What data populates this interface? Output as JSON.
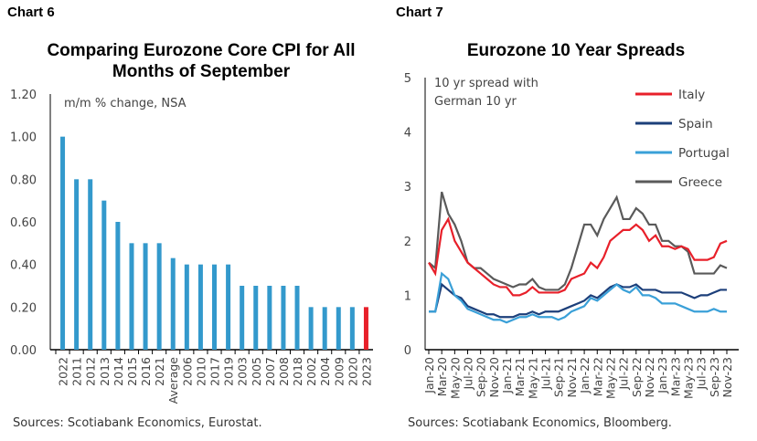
{
  "chart_data": [
    {
      "label": "Chart 6",
      "type": "bar",
      "title": "Comparing Eurozone Core CPI for All Months of September",
      "annotation": "m/m % change, NSA",
      "source": "Sources: Scotiabank Economics, Eurostat.",
      "categories": [
        "2022",
        "2011",
        "2012",
        "2013",
        "2014",
        "2015",
        "2016",
        "2021",
        "Average",
        "2006",
        "2010",
        "2017",
        "2019",
        "2003",
        "2005",
        "2007",
        "2008",
        "2018",
        "2002",
        "2004",
        "2009",
        "2020",
        "2023"
      ],
      "values": [
        1.0,
        0.8,
        0.8,
        0.7,
        0.6,
        0.5,
        0.5,
        0.5,
        0.43,
        0.4,
        0.4,
        0.4,
        0.4,
        0.3,
        0.3,
        0.3,
        0.3,
        0.3,
        0.2,
        0.2,
        0.2,
        0.2,
        0.2
      ],
      "highlight": "2023",
      "colors": {
        "bar": "#3399cc",
        "highlight": "#e8202a"
      },
      "yticks": [
        "0.00",
        "0.20",
        "0.40",
        "0.60",
        "0.80",
        "1.00",
        "1.20"
      ],
      "ylim": [
        0,
        1.2
      ]
    },
    {
      "label": "Chart 7",
      "type": "line",
      "title": "Eurozone 10 Year Spreads",
      "annotation": "10 yr spread with German 10 yr",
      "source": "Sources: Scotiabank Economics, Bloomberg.",
      "xticks": [
        "Jan-20",
        "Mar-20",
        "May-20",
        "Jul-20",
        "Sep-20",
        "Nov-20",
        "Jan-21",
        "Mar-21",
        "May-21",
        "Jul-21",
        "Sep-21",
        "Nov-21",
        "Jan-22",
        "Mar-22",
        "May-22",
        "Jul-22",
        "Sep-22",
        "Nov-22",
        "Jan-23",
        "Mar-23",
        "May-23",
        "Jul-23",
        "Sep-23",
        "Nov-23"
      ],
      "yticks": [
        "0",
        "1",
        "2",
        "3",
        "4",
        "5"
      ],
      "ylim": [
        0,
        5
      ],
      "legend": "top-right",
      "series": [
        {
          "name": "Italy",
          "color": "#e8202a",
          "values": [
            1.6,
            1.4,
            2.2,
            2.4,
            2.0,
            1.8,
            1.6,
            1.5,
            1.4,
            1.3,
            1.2,
            1.15,
            1.15,
            1.0,
            1.0,
            1.05,
            1.15,
            1.05,
            1.05,
            1.05,
            1.05,
            1.1,
            1.3,
            1.35,
            1.4,
            1.6,
            1.5,
            1.7,
            2.0,
            2.1,
            2.2,
            2.2,
            2.3,
            2.2,
            2.0,
            2.1,
            1.9,
            1.9,
            1.85,
            1.9,
            1.85,
            1.65,
            1.65,
            1.65,
            1.7,
            1.95,
            2.0
          ]
        },
        {
          "name": "Spain",
          "color": "#1c3f7a",
          "values": [
            0.7,
            0.7,
            1.2,
            1.1,
            1.0,
            0.95,
            0.8,
            0.75,
            0.7,
            0.65,
            0.65,
            0.6,
            0.6,
            0.6,
            0.65,
            0.65,
            0.7,
            0.65,
            0.7,
            0.7,
            0.7,
            0.75,
            0.8,
            0.85,
            0.9,
            1.0,
            0.95,
            1.05,
            1.15,
            1.2,
            1.15,
            1.15,
            1.2,
            1.1,
            1.1,
            1.1,
            1.05,
            1.05,
            1.05,
            1.05,
            1.0,
            0.95,
            1.0,
            1.0,
            1.05,
            1.1,
            1.1
          ]
        },
        {
          "name": "Portugal",
          "color": "#3aa0d8",
          "values": [
            0.7,
            0.7,
            1.4,
            1.3,
            1.0,
            0.9,
            0.75,
            0.7,
            0.65,
            0.6,
            0.55,
            0.55,
            0.5,
            0.55,
            0.6,
            0.6,
            0.65,
            0.6,
            0.6,
            0.6,
            0.55,
            0.6,
            0.7,
            0.75,
            0.8,
            0.95,
            0.9,
            1.0,
            1.1,
            1.2,
            1.1,
            1.05,
            1.15,
            1.0,
            1.0,
            0.95,
            0.85,
            0.85,
            0.85,
            0.8,
            0.75,
            0.7,
            0.7,
            0.7,
            0.75,
            0.7,
            0.7
          ]
        },
        {
          "name": "Greece",
          "color": "#5a5a5a",
          "values": [
            1.6,
            1.5,
            2.9,
            2.5,
            2.3,
            2.0,
            1.6,
            1.5,
            1.5,
            1.4,
            1.3,
            1.25,
            1.2,
            1.15,
            1.2,
            1.2,
            1.3,
            1.15,
            1.1,
            1.1,
            1.1,
            1.2,
            1.5,
            1.9,
            2.3,
            2.3,
            2.1,
            2.4,
            2.6,
            2.8,
            2.4,
            2.4,
            2.6,
            2.5,
            2.3,
            2.3,
            2.0,
            2.0,
            1.9,
            1.9,
            1.8,
            1.4,
            1.4,
            1.4,
            1.4,
            1.55,
            1.5
          ]
        }
      ]
    }
  ]
}
